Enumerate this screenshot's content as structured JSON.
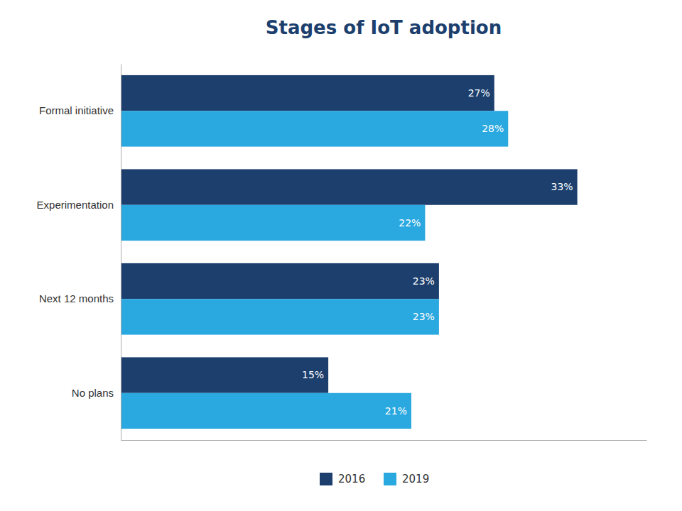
{
  "chart_data": {
    "type": "bar",
    "orientation": "horizontal",
    "title": "Stages of IoT adoption",
    "categories": [
      "Formal initiative",
      "Experimentation",
      "Next 12 months",
      "No plans"
    ],
    "series": [
      {
        "name": "2016",
        "color": "#1c3f6e",
        "values": [
          27,
          33,
          23,
          15
        ],
        "value_labels": [
          "27%",
          "33%",
          "23%",
          "15%"
        ]
      },
      {
        "name": "2019",
        "color": "#2aa8e0",
        "values": [
          28,
          22,
          23,
          21
        ],
        "value_labels": [
          "28%",
          "22%",
          "23%",
          "21%"
        ]
      }
    ],
    "xlim": [
      0,
      38
    ],
    "grid": false,
    "legend": "bottom",
    "data_labels": true,
    "tick_labels": "y"
  }
}
